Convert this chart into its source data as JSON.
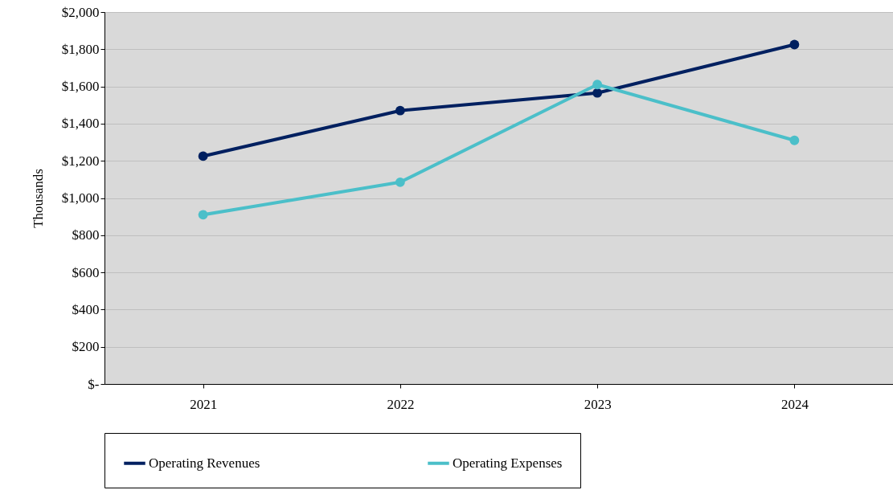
{
  "chart_data": {
    "type": "line",
    "ylabel": "Thousands",
    "categories": [
      "2021",
      "2022",
      "2023",
      "2024"
    ],
    "series": [
      {
        "name": "Operating Revenues",
        "color": "#002060",
        "values": [
          1225,
          1470,
          1565,
          1825
        ]
      },
      {
        "name": "Operating Expenses",
        "color": "#4bbfc9",
        "values": [
          910,
          1085,
          1610,
          1310
        ]
      }
    ],
    "ylim": [
      0,
      2000
    ],
    "yticks": [
      {
        "value": 0,
        "label": "$-"
      },
      {
        "value": 200,
        "label": "$200"
      },
      {
        "value": 400,
        "label": "$400"
      },
      {
        "value": 600,
        "label": "$600"
      },
      {
        "value": 800,
        "label": "$800"
      },
      {
        "value": 1000,
        "label": "$1,000"
      },
      {
        "value": 1200,
        "label": "$1,200"
      },
      {
        "value": 1400,
        "label": "$1,400"
      },
      {
        "value": 1600,
        "label": "$1,600"
      },
      {
        "value": 1800,
        "label": "$1,800"
      },
      {
        "value": 2000,
        "label": "$2,000"
      }
    ],
    "grid": "y",
    "legend": "bottom",
    "marker": "circle",
    "line_style": "solid"
  }
}
